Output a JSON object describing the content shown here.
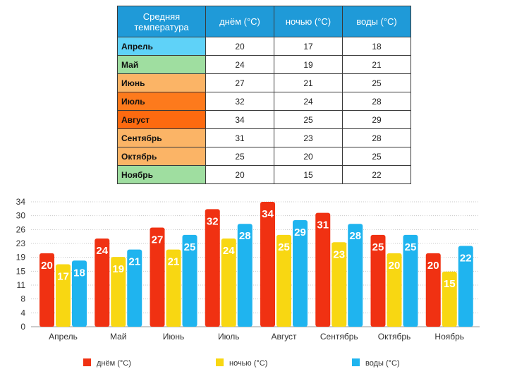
{
  "table": {
    "headers": [
      "Средняя температура",
      "днём (°C)",
      "ночью (°C)",
      "воды (°C)"
    ],
    "rows": [
      {
        "month": "Апрель",
        "day": "20",
        "night": "17",
        "water": "18",
        "color": "#5fd2f8"
      },
      {
        "month": "Май",
        "day": "24",
        "night": "19",
        "water": "21",
        "color": "#9fdea0"
      },
      {
        "month": "Июнь",
        "day": "27",
        "night": "21",
        "water": "25",
        "color": "#fbb466"
      },
      {
        "month": "Июль",
        "day": "32",
        "night": "24",
        "water": "28",
        "color": "#fd7a1c"
      },
      {
        "month": "Август",
        "day": "34",
        "night": "25",
        "water": "29",
        "color": "#fd6a10"
      },
      {
        "month": "Сентябрь",
        "day": "31",
        "night": "23",
        "water": "28",
        "color": "#fbb466"
      },
      {
        "month": "Октябрь",
        "day": "25",
        "night": "20",
        "water": "25",
        "color": "#fbb466"
      },
      {
        "month": "Ноябрь",
        "day": "20",
        "night": "15",
        "water": "22",
        "color": "#9fdea0"
      }
    ],
    "header_color": "#1f9ad8"
  },
  "chart_data": {
    "type": "bar",
    "categories": [
      "Апрель",
      "Май",
      "Июнь",
      "Июль",
      "Август",
      "Сентябрь",
      "Октябрь",
      "Ноябрь"
    ],
    "series": [
      {
        "name": "днём (°C)",
        "values": [
          20,
          24,
          27,
          32,
          34,
          31,
          25,
          20
        ],
        "color": "#f03112"
      },
      {
        "name": "ночью (°C)",
        "values": [
          17,
          19,
          21,
          24,
          25,
          23,
          20,
          15
        ],
        "color": "#f8d712"
      },
      {
        "name": "воды (°C)",
        "values": [
          18,
          21,
          25,
          28,
          29,
          28,
          25,
          22
        ],
        "color": "#1fb4ef"
      }
    ],
    "yticks": [
      "0",
      "4",
      "8",
      "11",
      "15",
      "19",
      "23",
      "26",
      "30",
      "34"
    ],
    "ylim": [
      0,
      36
    ],
    "grid": true,
    "data_labels": true,
    "legend": "bottom"
  }
}
